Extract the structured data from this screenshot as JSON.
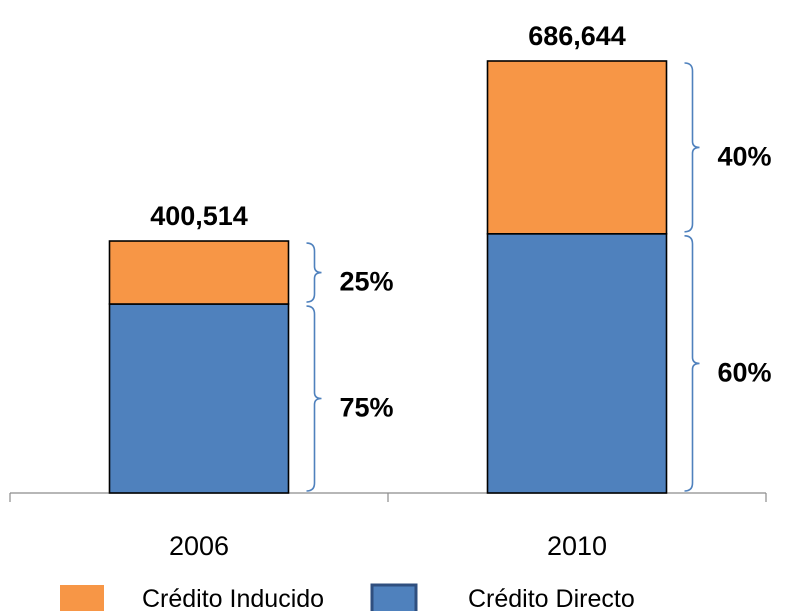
{
  "chart_data": {
    "type": "bar",
    "stacked": true,
    "categories": [
      "2006",
      "2010"
    ],
    "series": [
      {
        "name": "Crédito Directo",
        "values": [
          300386,
          411986
        ],
        "color": "#4f81bd"
      },
      {
        "name": "Crédito Inducido",
        "values": [
          100128,
          274658
        ],
        "color": "#f79646"
      }
    ],
    "totals": [
      "400,514",
      "686,644"
    ],
    "totals_values": [
      400514,
      686644
    ],
    "share_labels": [
      {
        "category": "2006",
        "series": "Crédito Inducido",
        "text": "25%"
      },
      {
        "category": "2006",
        "series": "Crédito Directo",
        "text": "75%"
      },
      {
        "category": "2010",
        "series": "Crédito Inducido",
        "text": "40%"
      },
      {
        "category": "2010",
        "series": "Crédito Directo",
        "text": "60%"
      }
    ],
    "legend": {
      "position": "bottom",
      "items": [
        {
          "label": "Crédito Inducido",
          "color": "#f79646"
        },
        {
          "label": "Crédito Directo",
          "color": "#4f81bd"
        }
      ]
    },
    "ylim": [
      0,
      700000
    ],
    "grid": false,
    "brace_color": "#4f81bd"
  }
}
